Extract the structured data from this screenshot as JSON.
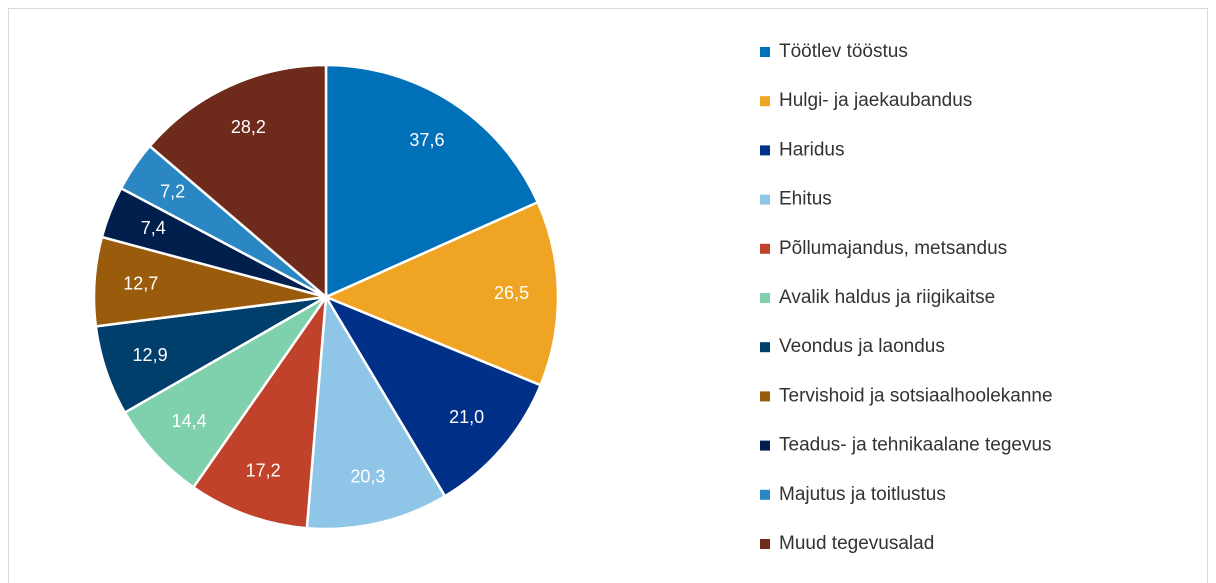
{
  "chart_data": {
    "type": "pie",
    "categories": [
      "Töötlev tööstus",
      "Hulgi- ja jaekaubandus",
      "Haridus",
      "Ehitus",
      "Põllumajandus, metsandus",
      "Avalik haldus ja riigikaitse",
      "Veondus ja laondus",
      "Tervishoid ja sotsiaalhoolekanne",
      "Teadus- ja tehnikaalane tegevus",
      "Majutus ja toitlustus",
      "Muud tegevusalad"
    ],
    "values": [
      37.6,
      26.5,
      21.0,
      20.3,
      17.2,
      14.4,
      12.9,
      12.7,
      7.4,
      7.2,
      28.2
    ],
    "value_labels": [
      "37,6",
      "26,5",
      "21,0",
      "20,3",
      "17,2",
      "14,4",
      "12,9",
      "12,7",
      "7,4",
      "7,2",
      "28,2"
    ],
    "colors": [
      "#0070b8",
      "#f0a423",
      "#003087",
      "#8fc6e8",
      "#c0422b",
      "#7fd0ad",
      "#003f6b",
      "#9a5c0c",
      "#001f4d",
      "#2b86c4",
      "#6e2a1a"
    ],
    "legend": "right"
  }
}
